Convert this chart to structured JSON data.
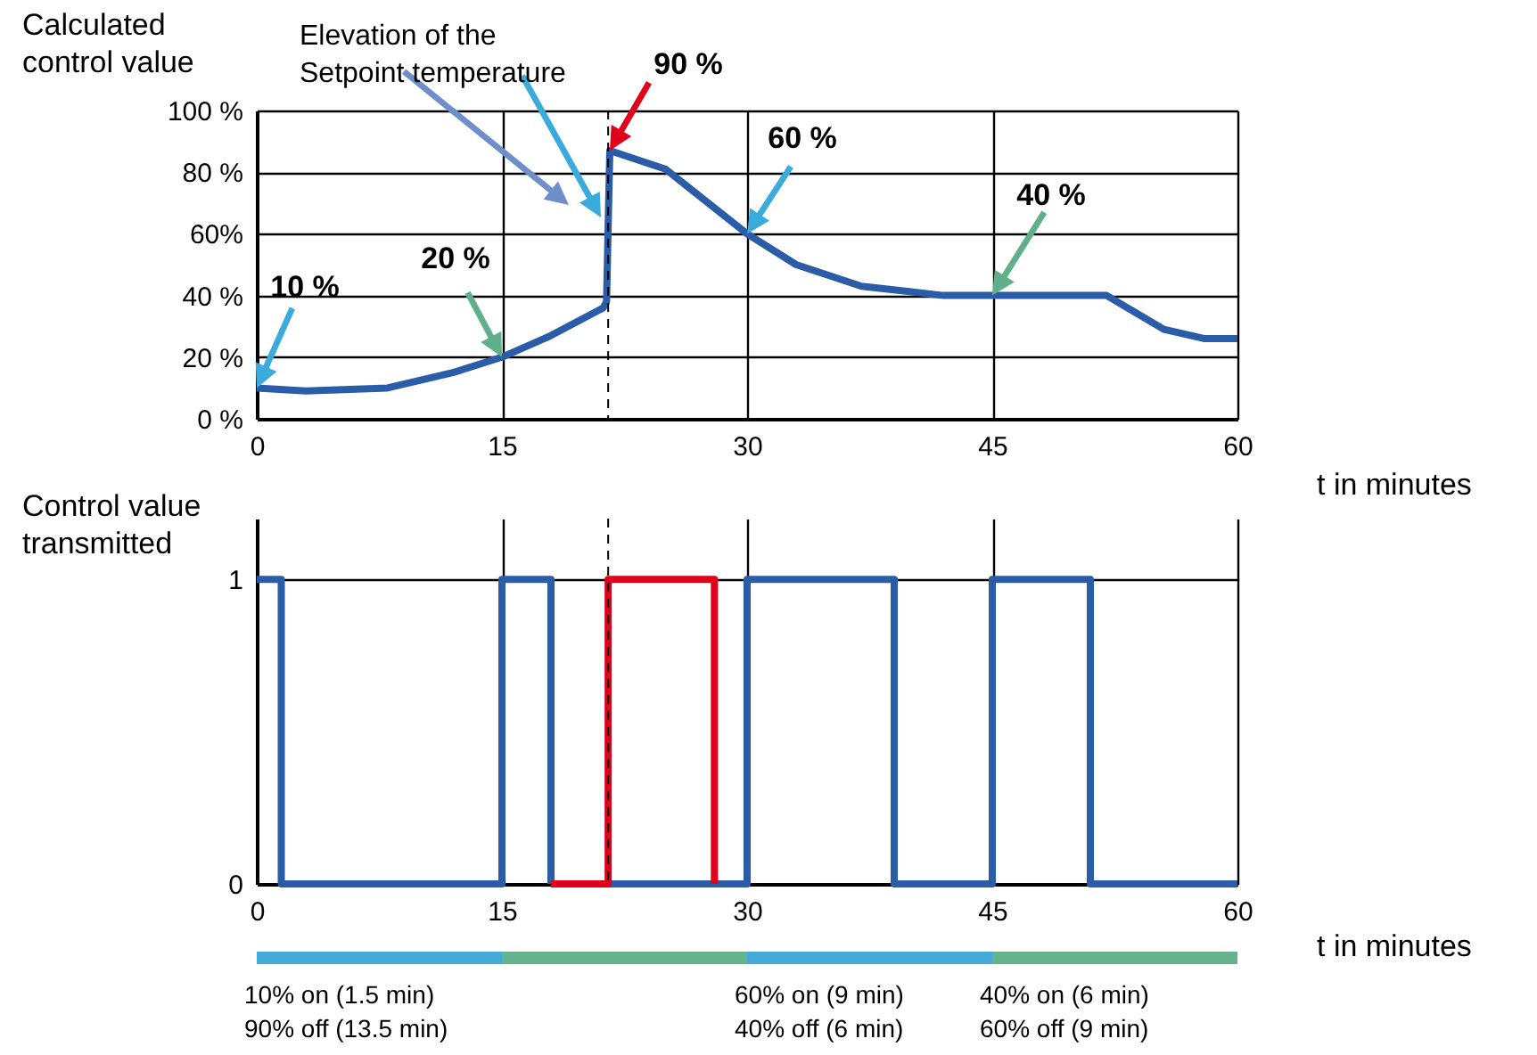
{
  "chart_data": [
    {
      "type": "line",
      "ylabel": "Calculated\ncontrol value",
      "xlabel": "t in minutes",
      "x": [
        0,
        3,
        8,
        12,
        15,
        18,
        21.2,
        21.4,
        21.6,
        25,
        30,
        33,
        37,
        42,
        45,
        52,
        55.5,
        58,
        60
      ],
      "series": [
        {
          "color": "#2a5ca8",
          "values": [
            10,
            9,
            10,
            15,
            20,
            27,
            36,
            38,
            87,
            81,
            60,
            50,
            43,
            40,
            40,
            40,
            29,
            26,
            26
          ]
        }
      ],
      "xlim": [
        0,
        60
      ],
      "xticks": [
        0,
        15,
        30,
        45,
        60
      ],
      "ylim": [
        0,
        100
      ],
      "yticks": [
        {
          "value": 0,
          "label": "0 %"
        },
        {
          "value": 20,
          "label": "20 %"
        },
        {
          "value": 40,
          "label": "40 %"
        },
        {
          "value": 60,
          "label": "60%"
        },
        {
          "value": 80,
          "label": "80 %"
        },
        {
          "value": 100,
          "label": "100 %"
        }
      ],
      "grid": true,
      "ref_lines": [
        {
          "axis": "x",
          "value": 21.5
        }
      ],
      "annotations": [
        {
          "text": "10 %",
          "x": 0,
          "y": 10
        },
        {
          "text": "20 %",
          "x": 15,
          "y": 20
        },
        {
          "text": "90 %",
          "x": 21.6,
          "y": 87
        },
        {
          "text": "60 %",
          "x": 30,
          "y": 60
        },
        {
          "text": "40 %",
          "x": 45,
          "y": 40
        },
        "Elevation of the\nSetpoint temperature"
      ]
    },
    {
      "type": "step",
      "ylabel": "Control value\ntransmitted",
      "xlabel": "t in minutes",
      "series": [
        {
          "color": "#2a5ca8",
          "x": [
            0,
            1.5,
            15,
            18,
            20,
            21.5,
            30,
            39,
            45,
            51,
            60
          ],
          "values": [
            1,
            0,
            1,
            0,
            null,
            0,
            1,
            0,
            1,
            0,
            0
          ]
        },
        {
          "color": "#e0001b",
          "x": [
            18,
            21.5,
            28
          ],
          "values": [
            0,
            1,
            0
          ]
        }
      ],
      "xlim": [
        0,
        60
      ],
      "xticks": [
        0,
        15,
        30,
        45,
        60
      ],
      "ylim": [
        0,
        1.2
      ],
      "yticks": [
        0,
        1
      ],
      "grid": true,
      "ref_lines": [
        {
          "axis": "x",
          "value": 21.5
        }
      ],
      "annotations": [
        "10% on (1.5 min)\n90% off (13.5 min)",
        "60% on (9 min)\n40% off (6 min)",
        "40% on (6 min)\n60% off (9 min)"
      ]
    }
  ]
}
